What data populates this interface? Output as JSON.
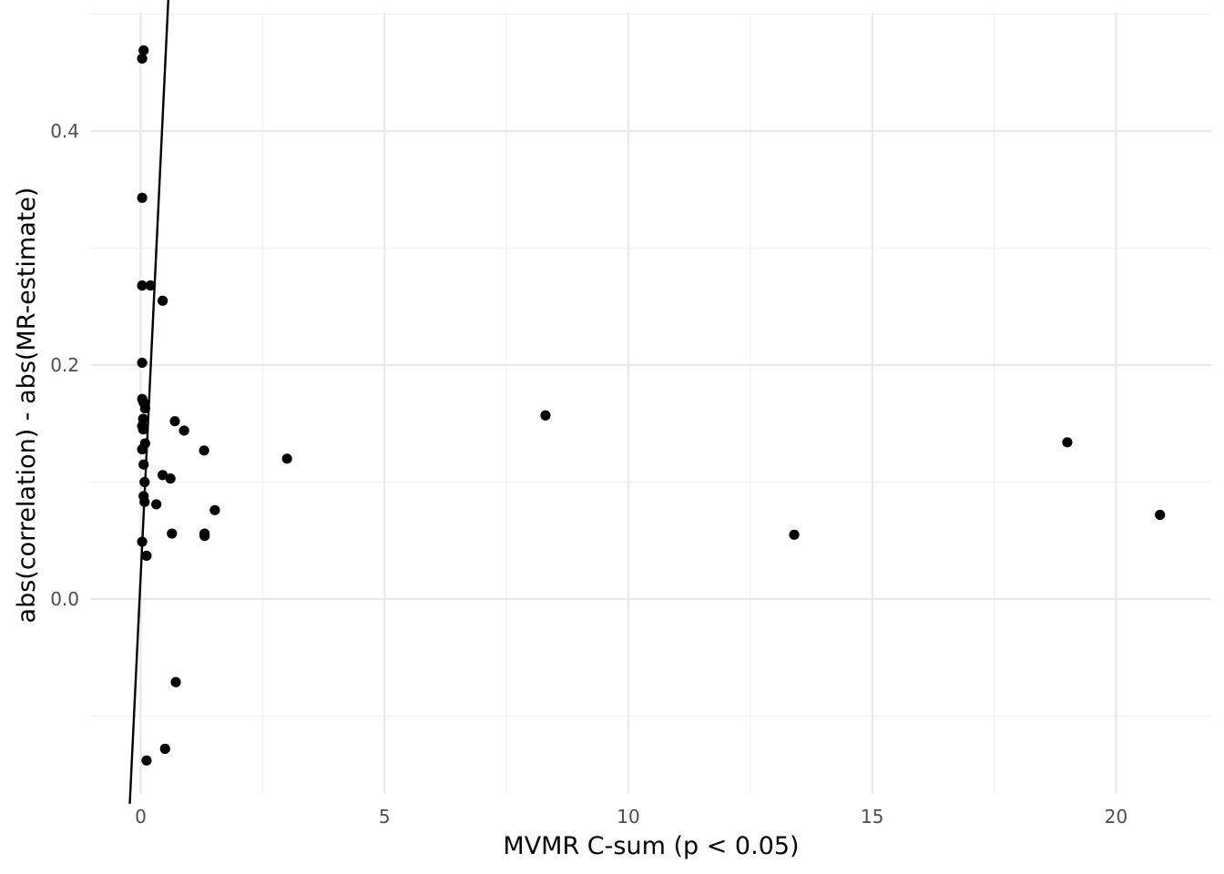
{
  "chart_data": {
    "type": "scatter",
    "title": "",
    "xlabel": "MVMR C-sum (p < 0.05)",
    "ylabel": "abs(correlation) - abs(MR-estimate)",
    "xlim": [
      -1.0,
      21.9
    ],
    "ylim": [
      -0.165,
      0.5
    ],
    "x_ticks": [
      0,
      5,
      10,
      15,
      20
    ],
    "x_tick_labels": [
      "0",
      "5",
      "10",
      "15",
      "20"
    ],
    "y_ticks": [
      0.0,
      0.2,
      0.4
    ],
    "y_tick_labels": [
      "0.0",
      "0.2",
      "0.4"
    ],
    "grid": true,
    "legend": "none",
    "points": [
      {
        "x": 0.06,
        "y": 0.469
      },
      {
        "x": 0.03,
        "y": 0.462
      },
      {
        "x": 0.03,
        "y": 0.343
      },
      {
        "x": 0.03,
        "y": 0.268
      },
      {
        "x": 0.2,
        "y": 0.268
      },
      {
        "x": 0.45,
        "y": 0.255
      },
      {
        "x": 0.03,
        "y": 0.202
      },
      {
        "x": 0.03,
        "y": 0.171
      },
      {
        "x": 0.06,
        "y": 0.168
      },
      {
        "x": 0.09,
        "y": 0.163
      },
      {
        "x": 0.05,
        "y": 0.154
      },
      {
        "x": 0.03,
        "y": 0.148
      },
      {
        "x": 0.05,
        "y": 0.145
      },
      {
        "x": 0.09,
        "y": 0.133
      },
      {
        "x": 0.03,
        "y": 0.128
      },
      {
        "x": 0.06,
        "y": 0.115
      },
      {
        "x": 0.08,
        "y": 0.1
      },
      {
        "x": 0.06,
        "y": 0.088
      },
      {
        "x": 0.08,
        "y": 0.083
      },
      {
        "x": 0.03,
        "y": 0.049
      },
      {
        "x": 0.12,
        "y": 0.037
      },
      {
        "x": 0.32,
        "y": 0.081
      },
      {
        "x": 0.45,
        "y": 0.106
      },
      {
        "x": 0.61,
        "y": 0.103
      },
      {
        "x": 0.7,
        "y": 0.152
      },
      {
        "x": 0.89,
        "y": 0.144
      },
      {
        "x": 1.3,
        "y": 0.127
      },
      {
        "x": 0.64,
        "y": 0.056
      },
      {
        "x": 1.31,
        "y": 0.056
      },
      {
        "x": 1.31,
        "y": 0.054
      },
      {
        "x": 1.52,
        "y": 0.076
      },
      {
        "x": 3.0,
        "y": 0.12
      },
      {
        "x": 0.72,
        "y": -0.071
      },
      {
        "x": 0.5,
        "y": -0.128
      },
      {
        "x": 0.12,
        "y": -0.138
      },
      {
        "x": 8.3,
        "y": 0.157
      },
      {
        "x": 13.4,
        "y": 0.055
      },
      {
        "x": 19.0,
        "y": 0.134
      },
      {
        "x": 20.9,
        "y": 0.072
      }
    ],
    "reference_line": {
      "intercept": 0.02,
      "slope": 0.87
    }
  }
}
